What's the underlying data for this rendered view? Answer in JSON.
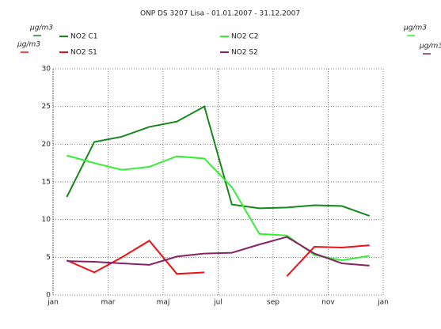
{
  "chart_data": {
    "type": "line",
    "title": "ONP DS 3207 Lisa - 01.01.2007 - 31.12.2007",
    "x": [
      0.5,
      1.5,
      2.5,
      3.5,
      4.5,
      5.5,
      6.5,
      7.5,
      8.5,
      9.5,
      10.5,
      11.5
    ],
    "xlim": [
      0,
      12
    ],
    "xticks": [
      {
        "value": 0,
        "label": "jan"
      },
      {
        "value": 2,
        "label": "mar"
      },
      {
        "value": 4,
        "label": "maj"
      },
      {
        "value": 6,
        "label": "jul"
      },
      {
        "value": 8,
        "label": "sep"
      },
      {
        "value": 10,
        "label": "nov"
      },
      {
        "value": 12,
        "label": "jan"
      }
    ],
    "ylim": [
      0,
      30
    ],
    "yticks": [
      0,
      5,
      10,
      15,
      20,
      25,
      30
    ],
    "grid": true,
    "series": [
      {
        "name": "NO2 C1",
        "unit": "µg/m3",
        "color": "#15881a",
        "values": [
          13,
          20.3,
          21,
          22.3,
          23,
          25,
          12,
          11.5,
          11.6,
          11.9,
          11.8,
          10.5
        ]
      },
      {
        "name": "NO2 C2",
        "unit": "µg/m3",
        "color": "#33ee33",
        "values": [
          18.5,
          17.5,
          16.6,
          17,
          18.4,
          18.1,
          14.3,
          8.1,
          7.9,
          5.3,
          4.6,
          5.2
        ]
      },
      {
        "name": "NO2 S1",
        "unit": "µg/m3",
        "color": "#ee1111",
        "values": [
          4.6,
          3,
          5,
          7.2,
          2.8,
          3,
          null,
          null,
          2.5,
          6.4,
          6.3,
          6.6
        ]
      },
      {
        "name": "NO2 S2",
        "unit": "µg/m3",
        "color": "#882266",
        "values": [
          4.5,
          4.4,
          4.2,
          4,
          5.1,
          5.5,
          5.6,
          6.7,
          7.7,
          5.5,
          4.2,
          3.9
        ]
      }
    ]
  }
}
